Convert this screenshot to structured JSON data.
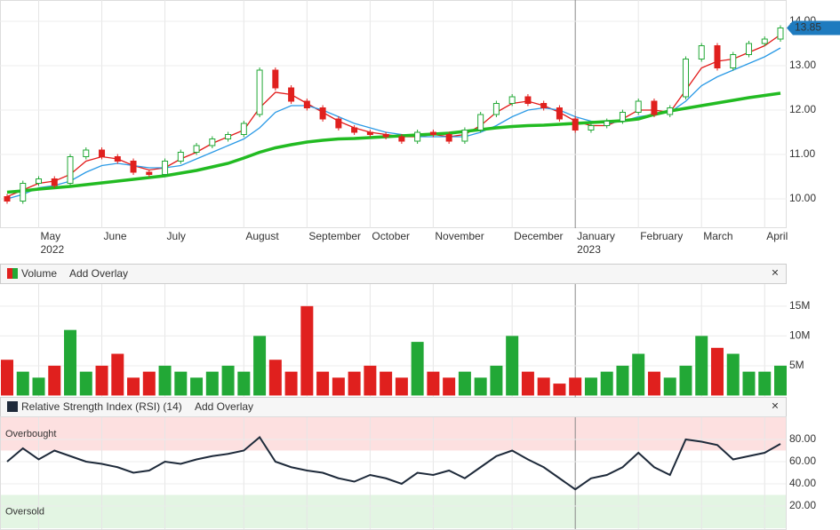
{
  "chart_data": [
    {
      "type": "candlestick",
      "categories": [
        null,
        null,
        "May",
        null,
        null,
        null,
        "June",
        null,
        null,
        null,
        "July",
        null,
        null,
        null,
        null,
        "August",
        null,
        null,
        null,
        "September",
        null,
        null,
        null,
        "October",
        null,
        null,
        null,
        "November",
        null,
        null,
        null,
        null,
        "December",
        null,
        null,
        null,
        "January",
        null,
        null,
        null,
        "February",
        null,
        null,
        null,
        "March",
        null,
        null,
        null,
        "April",
        null
      ],
      "years": [
        null,
        null,
        "2022",
        null,
        null,
        null,
        null,
        null,
        null,
        null,
        null,
        null,
        null,
        null,
        null,
        null,
        null,
        null,
        null,
        null,
        null,
        null,
        null,
        null,
        null,
        null,
        null,
        null,
        null,
        null,
        null,
        null,
        null,
        null,
        null,
        null,
        "2023",
        null,
        null,
        null,
        null,
        null,
        null,
        null,
        null,
        null,
        null,
        null,
        null,
        null
      ],
      "open": [
        10.05,
        9.95,
        10.35,
        10.45,
        10.35,
        10.95,
        11.1,
        10.95,
        10.85,
        10.6,
        10.55,
        10.85,
        11.05,
        11.2,
        11.35,
        11.45,
        11.9,
        12.9,
        12.5,
        12.2,
        12.05,
        11.8,
        11.6,
        11.5,
        11.45,
        11.4,
        11.3,
        11.5,
        11.45,
        11.3,
        11.55,
        11.9,
        12.15,
        12.3,
        12.15,
        12.05,
        11.8,
        11.55,
        11.65,
        11.75,
        11.95,
        12.2,
        11.9,
        12.3,
        13.15,
        13.45,
        12.95,
        13.25,
        13.5,
        13.6
      ],
      "close": [
        9.95,
        10.35,
        10.45,
        10.3,
        10.95,
        11.1,
        10.95,
        10.85,
        10.6,
        10.55,
        10.85,
        11.05,
        11.2,
        11.35,
        11.45,
        11.7,
        12.9,
        12.5,
        12.2,
        12.05,
        11.8,
        11.6,
        11.5,
        11.45,
        11.4,
        11.3,
        11.5,
        11.45,
        11.3,
        11.55,
        11.9,
        12.15,
        12.3,
        12.15,
        12.05,
        11.8,
        11.55,
        11.65,
        11.75,
        11.95,
        12.2,
        11.9,
        12.05,
        13.15,
        13.45,
        12.95,
        13.25,
        13.5,
        13.6,
        13.85
      ],
      "up_color": "#22a836",
      "down_color": "#e0201e",
      "series": [
        {
          "color": "#e21a1a",
          "width": 1.3,
          "values": [
            10.05,
            10.2,
            10.35,
            10.4,
            10.55,
            10.85,
            10.95,
            10.9,
            10.75,
            10.65,
            10.7,
            10.9,
            11.05,
            11.25,
            11.4,
            11.55,
            12.05,
            12.4,
            12.35,
            12.15,
            11.95,
            11.75,
            11.6,
            11.5,
            11.45,
            11.4,
            11.4,
            11.45,
            11.4,
            11.45,
            11.65,
            11.95,
            12.15,
            12.2,
            12.1,
            11.95,
            11.75,
            11.65,
            11.65,
            11.8,
            12.0,
            12.0,
            11.95,
            12.45,
            12.95,
            13.1,
            13.15,
            13.3,
            13.45,
            13.7
          ]
        },
        {
          "color": "#2b9ae6",
          "width": 1.3,
          "values": [
            10.0,
            10.1,
            10.25,
            10.3,
            10.4,
            10.6,
            10.75,
            10.8,
            10.75,
            10.7,
            10.7,
            10.75,
            10.9,
            11.05,
            11.2,
            11.35,
            11.6,
            11.95,
            12.1,
            12.1,
            12.0,
            11.85,
            11.7,
            11.6,
            11.5,
            11.45,
            11.4,
            11.4,
            11.4,
            11.4,
            11.5,
            11.65,
            11.85,
            12.0,
            12.05,
            12.0,
            11.85,
            11.75,
            11.7,
            11.75,
            11.85,
            11.9,
            11.95,
            12.2,
            12.55,
            12.75,
            12.9,
            13.05,
            13.2,
            13.4
          ]
        },
        {
          "color": "#22bb22",
          "width": 3.5,
          "values": [
            10.15,
            10.18,
            10.22,
            10.25,
            10.28,
            10.32,
            10.36,
            10.4,
            10.44,
            10.48,
            10.52,
            10.58,
            10.64,
            10.72,
            10.8,
            10.92,
            11.05,
            11.15,
            11.22,
            11.28,
            11.32,
            11.35,
            11.36,
            11.38,
            11.4,
            11.42,
            11.44,
            11.46,
            11.48,
            11.52,
            11.56,
            11.6,
            11.63,
            11.65,
            11.66,
            11.68,
            11.7,
            11.72,
            11.74,
            11.76,
            11.8,
            11.9,
            11.98,
            12.04,
            12.1,
            12.16,
            12.22,
            12.28,
            12.33,
            12.38
          ]
        }
      ],
      "last_price": 13.85,
      "last_price_color": "#1e7bbf",
      "ylim": [
        9.34,
        14.48
      ],
      "yticks": [
        {
          "value": 10,
          "label": "10.00"
        },
        {
          "value": 11,
          "label": "11.00"
        },
        {
          "value": 12,
          "label": "12.00"
        },
        {
          "value": 13,
          "label": "13.00"
        },
        {
          "value": 14,
          "label": "14.00"
        }
      ],
      "grid": true
    },
    {
      "type": "bar",
      "title": "Volume",
      "overlay_button": "Add Overlay",
      "close_button": "×",
      "values": [
        6,
        4,
        3,
        5,
        11,
        4,
        5,
        7,
        3,
        4,
        5,
        4,
        3,
        4,
        5,
        4,
        10,
        6,
        4,
        15,
        4,
        3,
        4,
        5,
        4,
        3,
        9,
        4,
        3,
        4,
        3,
        5,
        10,
        4,
        3,
        2,
        3,
        3,
        4,
        5,
        7,
        4,
        3,
        5,
        10,
        8,
        7,
        4,
        4,
        5
      ],
      "ylim": [
        0,
        18.7
      ],
      "yticks": [
        {
          "value": 5,
          "label": "5M"
        },
        {
          "value": 10,
          "label": "10M"
        },
        {
          "value": 15,
          "label": "15M"
        }
      ],
      "grid": true
    },
    {
      "type": "line",
      "title": "Relative Strength Index (RSI) (14)",
      "overlay_button": "Add Overlay",
      "close_button": "×",
      "color": "#1e2a3a",
      "values": [
        60,
        72,
        62,
        70,
        65,
        60,
        58,
        55,
        50,
        52,
        60,
        58,
        62,
        65,
        67,
        70,
        82,
        60,
        55,
        52,
        50,
        45,
        42,
        48,
        45,
        40,
        50,
        48,
        52,
        45,
        55,
        65,
        70,
        62,
        55,
        45,
        35,
        45,
        48,
        55,
        68,
        55,
        48,
        80,
        78,
        75,
        62,
        65,
        68,
        76
      ],
      "overbought": 70,
      "overbought_label": "Overbought",
      "oversold": 30,
      "oversold_label": "Oversold",
      "ylim": [
        0,
        100
      ],
      "yticks": [
        {
          "value": 20,
          "label": "20.00"
        },
        {
          "value": 40,
          "label": "40.00"
        },
        {
          "value": 60,
          "label": "60.00"
        },
        {
          "value": 80,
          "label": "80.00"
        }
      ],
      "grid": true
    }
  ]
}
